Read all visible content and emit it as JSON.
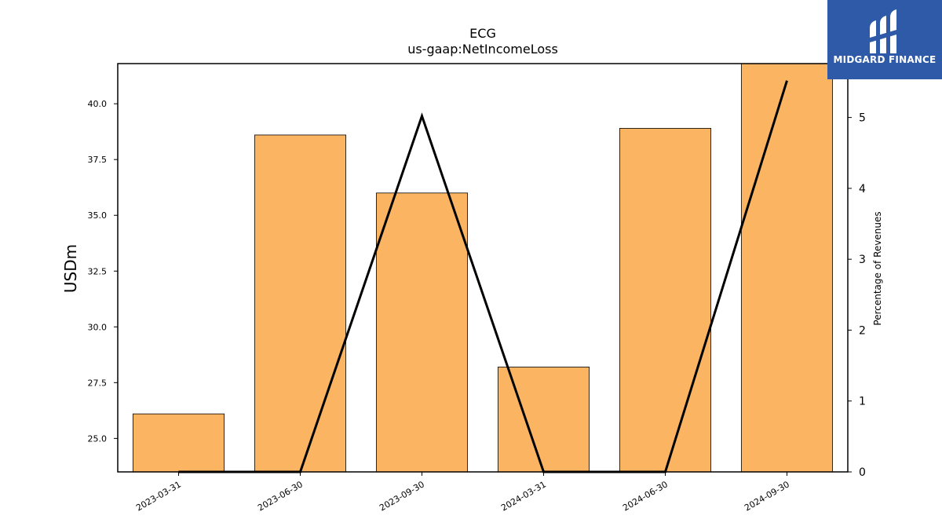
{
  "chart_data": {
    "type": "bar",
    "title": "ECG",
    "subtitle": "us-gaap:NetIncomeLoss",
    "categories": [
      "2023-03-31",
      "2023-06-30",
      "2023-09-30",
      "2024-03-31",
      "2024-06-30",
      "2024-09-30"
    ],
    "series": [
      {
        "values": [
          26.1,
          38.6,
          36.0,
          28.2,
          38.9,
          41.9
        ],
        "axis": "left",
        "kind": "bar"
      },
      {
        "values": [
          0.0,
          0.0,
          5.02,
          0.0,
          0.0,
          5.52
        ],
        "axis": "right",
        "kind": "line"
      }
    ],
    "ylabel": "USDm",
    "y2label": "Percentage of Revenues",
    "ylim": [
      23.5,
      41.8
    ],
    "y2lim": [
      0,
      5.76
    ],
    "yticks": [
      "25.0",
      "27.5",
      "30.0",
      "32.5",
      "35.0",
      "37.5",
      "40.0"
    ],
    "y2ticks": [
      "0",
      "1",
      "2",
      "3",
      "4",
      "5"
    ],
    "grid": false,
    "colors": {
      "bar": "#fbb462",
      "line": "#000000"
    }
  },
  "logo": {
    "text": "MIDGARD FINANCE",
    "bg_color": "#2f5aa8"
  }
}
